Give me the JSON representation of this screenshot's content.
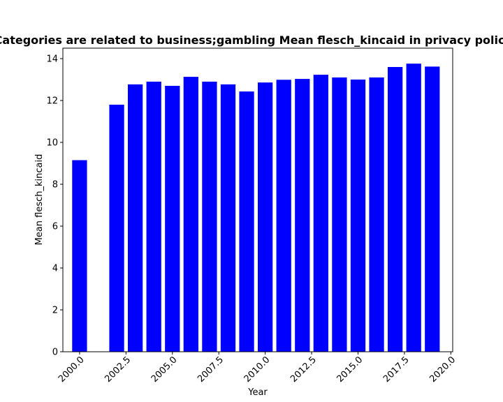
{
  "chart_data": {
    "type": "bar",
    "title": "Categories are related to business;gambling Mean flesch_kincaid in privacy policies",
    "xlabel": "Year",
    "ylabel": "Mean flesch_kincaid",
    "x": [
      2000,
      2002,
      2003,
      2004,
      2005,
      2006,
      2007,
      2008,
      2009,
      2010,
      2011,
      2012,
      2013,
      2014,
      2015,
      2016,
      2017,
      2018,
      2019
    ],
    "values": [
      9.15,
      11.8,
      12.77,
      12.9,
      12.7,
      13.13,
      12.9,
      12.77,
      12.43,
      12.86,
      12.99,
      13.03,
      13.23,
      13.1,
      13.0,
      13.1,
      13.6,
      13.76,
      13.62
    ],
    "xlim": [
      1999.1,
      2020.1
    ],
    "ylim": [
      0,
      14.5
    ],
    "xticks": [
      "2000.0",
      "2002.5",
      "2005.0",
      "2007.5",
      "2010.0",
      "2012.5",
      "2015.0",
      "2017.5",
      "2020.0"
    ],
    "yticks": [
      "0",
      "2",
      "4",
      "6",
      "8",
      "10",
      "12",
      "14"
    ],
    "bar_color": "#0000ff",
    "grid": false,
    "legend": "none"
  }
}
